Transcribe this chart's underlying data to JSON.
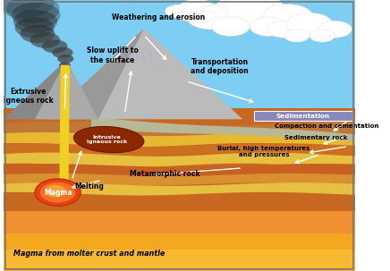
{
  "figsize": [
    4.36,
    3.03
  ],
  "dpi": 100,
  "labels": {
    "weathering": "Weathering and erosion",
    "slow_uplift": "Slow uplift to\nthe surface",
    "transport": "Transportation\nand deposition",
    "sedimentation": "Sedimentation",
    "compaction": "Compaction and cementation",
    "sedimentary_rock": "Sedimentary rock",
    "burial": "Burial, high temperatures\nand pressures",
    "metamorphic": "Metamorphic rock",
    "melting": "Melting",
    "magma": "Magma",
    "extrusive": "Extrusive\nigneous rock",
    "intrusive": "Intrusive\nigneous rock",
    "magma_bottom": "Magma from molter crust and mantle"
  },
  "colors": {
    "sky": "#7ecef4",
    "mountain_main": "#b0b0b0",
    "mountain_shadow": "#888888",
    "mountain_left": "#999999",
    "layer_deposition": "#c8c8a0",
    "layer_top_brown": "#c07830",
    "layer_orange1": "#d4952a",
    "layer_yellow1": "#e8b830",
    "layer_orange2": "#cc7020",
    "layer_yellow2": "#e8c040",
    "layer_dark_orange": "#c86020",
    "layer_light_orange": "#e89830",
    "magma_bottom_top": "#f09030",
    "magma_bottom_mid": "#f4a820",
    "magma_bottom_bot": "#f8b830",
    "magma_outer": "#e84010",
    "magma_mid": "#f87020",
    "magma_inner": "#ffa040",
    "lava_tube": "#f0d020",
    "intrusive_outer": "#6a1800",
    "intrusive_inner": "#8b2800",
    "sedimentation_box": "#8888cc",
    "cloud": "#ffffff",
    "smoke_dark": "#303030",
    "arrow": "white",
    "text": "black",
    "depo_layer": "#b8b898"
  }
}
